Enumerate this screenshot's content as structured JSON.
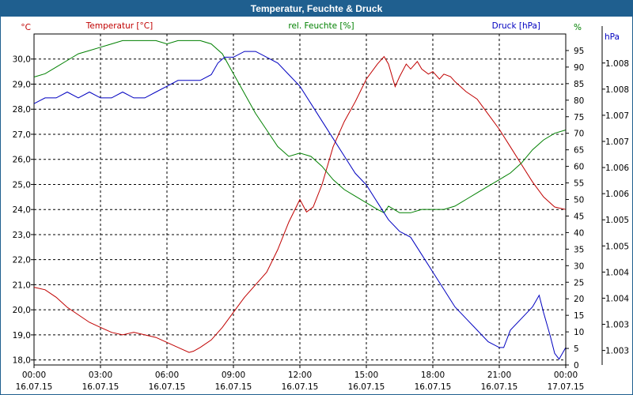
{
  "window": {
    "title": "Temperatur, Feuchte & Druck"
  },
  "colors": {
    "temperature": "#c00000",
    "humidity": "#008000",
    "pressure": "#0000c0",
    "grid": "#000000",
    "titlebar": "#1f5f8f"
  },
  "chart_data": {
    "type": "line",
    "grid": true,
    "legend": "top",
    "x_ticks": [
      {
        "time": "00:00",
        "date": "16.07.15"
      },
      {
        "time": "03:00",
        "date": "16.07.15"
      },
      {
        "time": "06:00",
        "date": "16.07.15"
      },
      {
        "time": "09:00",
        "date": "16.07.15"
      },
      {
        "time": "12:00",
        "date": "16.07.15"
      },
      {
        "time": "15:00",
        "date": "16.07.15"
      },
      {
        "time": "18:00",
        "date": "16.07.15"
      },
      {
        "time": "21:00",
        "date": "16.07.15"
      },
      {
        "time": "00:00",
        "date": "17.07.15"
      }
    ],
    "x_range_hours": [
      0,
      24
    ],
    "axes": {
      "temperature": {
        "unit": "°C",
        "ylim": [
          17.8,
          31.0
        ],
        "ticks": [
          "18,0",
          "19,0",
          "20,0",
          "21,0",
          "22,0",
          "23,0",
          "24,0",
          "25,0",
          "26,0",
          "27,0",
          "28,0",
          "29,0",
          "30,0"
        ]
      },
      "humidity": {
        "unit": "%",
        "ylim": [
          0,
          100
        ],
        "ticks": [
          "0",
          "5",
          "10",
          "15",
          "20",
          "25",
          "30",
          "35",
          "40",
          "45",
          "50",
          "55",
          "60",
          "65",
          "70",
          "75",
          "80",
          "85",
          "90",
          "95"
        ]
      },
      "pressure": {
        "unit": "hPa",
        "ylim": [
          1002.7,
          1008.4
        ],
        "ticks": [
          "1.003",
          "1.003",
          "1.004",
          "1.004",
          "1.005",
          "1.005",
          "1.006",
          "1.006",
          "1.007",
          "1.007",
          "1.008",
          "1.008"
        ]
      }
    },
    "series": [
      {
        "name": "Temperatur [°C]",
        "axis": "temperature",
        "color": "#c00000",
        "x": [
          0,
          0.5,
          1,
          1.5,
          2,
          2.5,
          3,
          3.5,
          4,
          4.5,
          5,
          5.5,
          6,
          6.5,
          7,
          7.2,
          7.5,
          8,
          8.5,
          9,
          9.5,
          10,
          10.5,
          11,
          11.5,
          12,
          12.3,
          12.6,
          13,
          13.5,
          14,
          14.5,
          15,
          15.5,
          15.8,
          16,
          16.3,
          16.5,
          16.8,
          17,
          17.3,
          17.5,
          17.8,
          18,
          18.3,
          18.5,
          18.8,
          19,
          19.5,
          20,
          20.5,
          21,
          21.5,
          22,
          22.5,
          23,
          23.5,
          24
        ],
        "y": [
          20.9,
          20.8,
          20.5,
          20.1,
          19.8,
          19.5,
          19.3,
          19.1,
          19.0,
          19.1,
          19.0,
          18.9,
          18.7,
          18.5,
          18.3,
          18.35,
          18.5,
          18.8,
          19.3,
          19.9,
          20.5,
          21.0,
          21.5,
          22.4,
          23.5,
          24.4,
          23.9,
          24.1,
          25.0,
          26.5,
          27.5,
          28.3,
          29.2,
          29.8,
          30.1,
          29.8,
          28.9,
          29.3,
          29.8,
          29.6,
          29.9,
          29.6,
          29.4,
          29.5,
          29.2,
          29.4,
          29.3,
          29.1,
          28.7,
          28.4,
          27.8,
          27.2,
          26.5,
          25.8,
          25.1,
          24.5,
          24.1,
          24.0
        ]
      },
      {
        "name": "rel. Feuchte [%]",
        "axis": "humidity",
        "color": "#008000",
        "x": [
          0,
          0.5,
          1,
          1.5,
          2,
          2.5,
          3,
          3.5,
          4,
          4.5,
          5,
          5.5,
          6,
          6.5,
          7,
          7.5,
          8,
          8.5,
          9,
          9.5,
          10,
          10.5,
          11,
          11.5,
          12,
          12.5,
          13,
          13.5,
          14,
          14.5,
          15,
          15.5,
          15.8,
          16,
          16.5,
          17,
          17.5,
          18,
          18.5,
          19,
          19.5,
          20,
          20.5,
          21,
          21.5,
          22,
          22.5,
          23,
          23.5,
          24
        ],
        "y": [
          87,
          88,
          90,
          92,
          94,
          95,
          96,
          97,
          98,
          98,
          98,
          98,
          97,
          98,
          98,
          98,
          97,
          94,
          88,
          82,
          76,
          71,
          66,
          63,
          64,
          63,
          60,
          56,
          53,
          51,
          49,
          47,
          46,
          48,
          46,
          46,
          47,
          47,
          47,
          48,
          50,
          52,
          54,
          56,
          58,
          61,
          65,
          68,
          70,
          71
        ]
      },
      {
        "name": "Druck [hPa]",
        "axis": "pressure",
        "color": "#0000c0",
        "x": [
          0,
          0.5,
          1,
          1.5,
          2,
          2.5,
          3,
          3.5,
          4,
          4.5,
          5,
          5.5,
          6,
          6.5,
          7,
          7.5,
          8,
          8.3,
          8.6,
          9,
          9.5,
          10,
          10.5,
          11,
          11.5,
          12,
          12.5,
          13,
          13.5,
          14,
          14.5,
          15,
          15.5,
          16,
          16.5,
          17,
          17.5,
          18,
          18.5,
          19,
          19.5,
          20,
          20.5,
          21,
          21.2,
          21.5,
          22,
          22.5,
          22.8,
          23,
          23.3,
          23.5,
          23.7,
          24
        ],
        "y": [
          1007.2,
          1007.3,
          1007.3,
          1007.4,
          1007.3,
          1007.4,
          1007.3,
          1007.3,
          1007.4,
          1007.3,
          1007.3,
          1007.4,
          1007.5,
          1007.6,
          1007.6,
          1007.6,
          1007.7,
          1007.9,
          1008.0,
          1008.0,
          1008.1,
          1008.1,
          1008.0,
          1007.9,
          1007.7,
          1007.5,
          1007.2,
          1006.9,
          1006.6,
          1006.3,
          1006.0,
          1005.8,
          1005.5,
          1005.2,
          1005.0,
          1004.9,
          1004.6,
          1004.3,
          1004.0,
          1003.7,
          1003.5,
          1003.3,
          1003.1,
          1003.0,
          1003.0,
          1003.3,
          1003.5,
          1003.7,
          1003.9,
          1003.6,
          1003.2,
          1002.9,
          1002.8,
          1003.0
        ]
      }
    ]
  }
}
